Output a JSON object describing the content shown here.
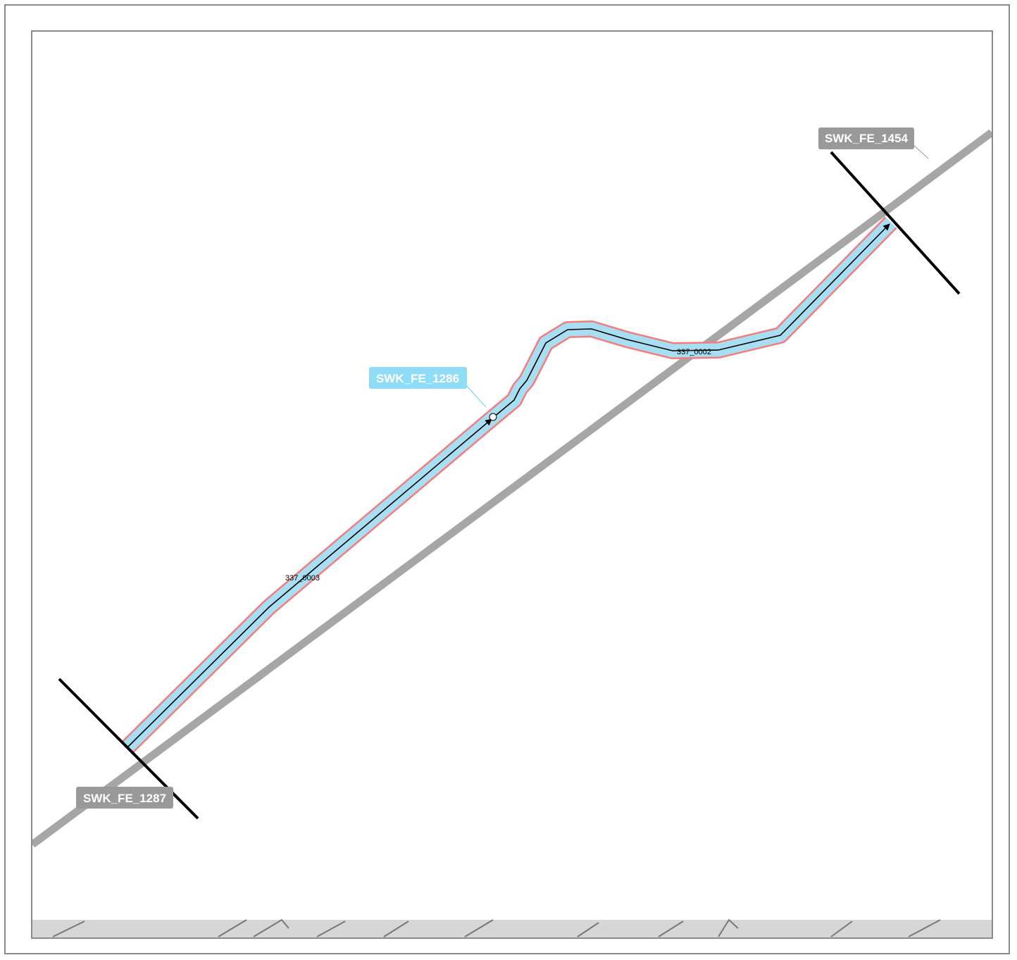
{
  "nodes": {
    "fe_1454": {
      "label": "SWK_FE_1454",
      "style": "gray"
    },
    "fe_1287": {
      "label": "SWK_FE_1287",
      "style": "gray"
    },
    "fe_1286": {
      "label": "SWK_FE_1286",
      "style": "highlight"
    }
  },
  "segments": {
    "seg_0002": {
      "label": "337_0002"
    },
    "seg_0003": {
      "label": "337_0003"
    }
  },
  "colors": {
    "frame_border": "#8a8a8a",
    "background_road": "#a6a6a6",
    "buffer_outline": "#f47c7c",
    "segment_fill": "#a8def2",
    "centerline": "#000000",
    "node_label_gray": "#999999",
    "node_label_highlight": "#8fdcf7",
    "node_bar": "#000000"
  }
}
